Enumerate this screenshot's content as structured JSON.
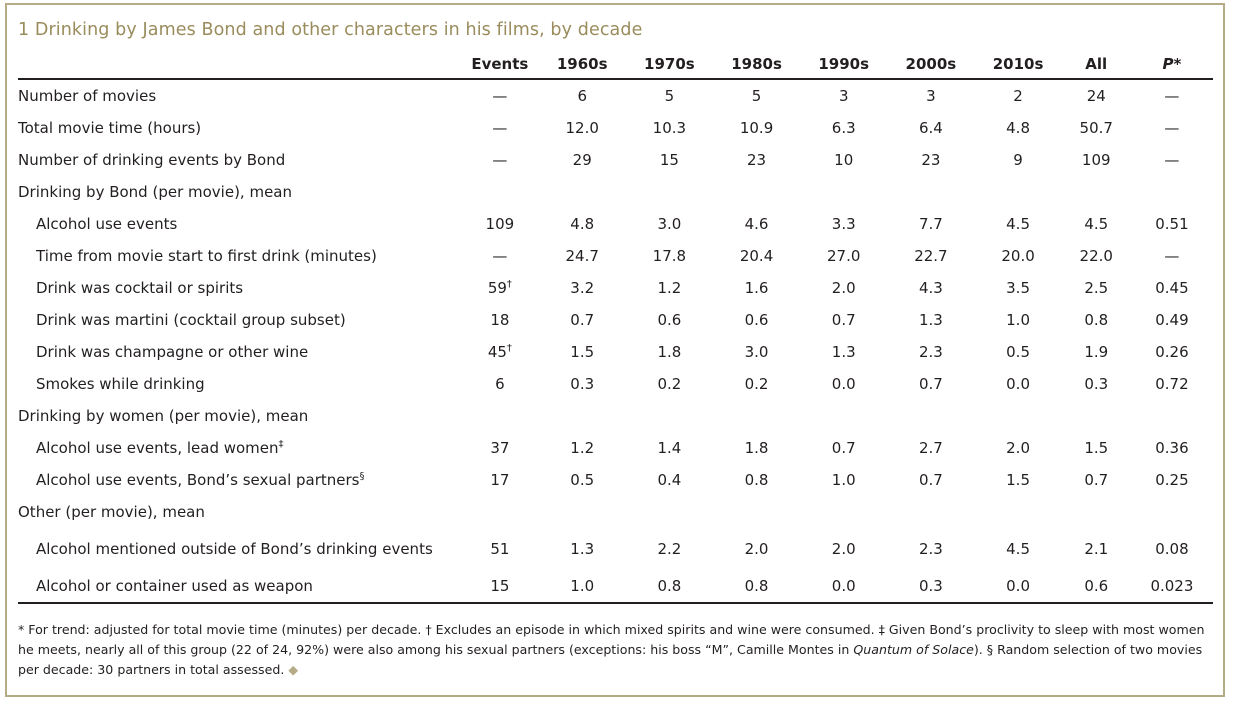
{
  "title": "1 Drinking by James Bond and other characters in his films, by decade",
  "headers": [
    "",
    "Events",
    "1960s",
    "1970s",
    "1980s",
    "1990s",
    "2000s",
    "2010s",
    "All",
    "P*"
  ],
  "rows": [
    {
      "label": "Number of movies",
      "cells": [
        "—",
        "6",
        "5",
        "5",
        "3",
        "3",
        "2",
        "24",
        "—"
      ]
    },
    {
      "label": "Total movie time (hours)",
      "cells": [
        "—",
        "12.0",
        "10.3",
        "10.9",
        "6.3",
        "6.4",
        "4.8",
        "50.7",
        "—"
      ]
    },
    {
      "label": "Number of drinking events by Bond",
      "cells": [
        "—",
        "29",
        "15",
        "23",
        "10",
        "23",
        "9",
        "109",
        "—"
      ]
    },
    {
      "label": "Drinking by Bond (per movie), mean"
    },
    {
      "label": "Alcohol use events",
      "cells": [
        "109",
        "4.8",
        "3.0",
        "4.6",
        "3.3",
        "7.7",
        "4.5",
        "4.5",
        "0.51"
      ]
    },
    {
      "label": "Time from movie start to first drink (minutes)",
      "cells": [
        "—",
        "24.7",
        "17.8",
        "20.4",
        "27.0",
        "22.7",
        "20.0",
        "22.0",
        "—"
      ]
    },
    {
      "label": "Drink was cocktail or spirits",
      "events": "59",
      "events_sup": "†",
      "cells": [
        "",
        "3.2",
        "1.2",
        "1.6",
        "2.0",
        "4.3",
        "3.5",
        "2.5",
        "0.45"
      ]
    },
    {
      "label": "Drink was martini (cocktail group subset)",
      "cells": [
        "18",
        "0.7",
        "0.6",
        "0.6",
        "0.7",
        "1.3",
        "1.0",
        "0.8",
        "0.49"
      ]
    },
    {
      "label": "Drink was champagne or other wine",
      "events": "45",
      "events_sup": "†",
      "cells": [
        "",
        "1.5",
        "1.8",
        "3.0",
        "1.3",
        "2.3",
        "0.5",
        "1.9",
        "0.26"
      ]
    },
    {
      "label": "Smokes while drinking",
      "cells": [
        "6",
        "0.3",
        "0.2",
        "0.2",
        "0.0",
        "0.7",
        "0.0",
        "0.3",
        "0.72"
      ]
    },
    {
      "label": "Drinking by women (per movie), mean"
    },
    {
      "label": "Alcohol use events, lead women",
      "label_sup": "‡",
      "cells": [
        "37",
        "1.2",
        "1.4",
        "1.8",
        "0.7",
        "2.7",
        "2.0",
        "1.5",
        "0.36"
      ]
    },
    {
      "label": "Alcohol use events, Bond’s sexual partners",
      "label_sup": "§",
      "cells": [
        "17",
        "0.5",
        "0.4",
        "0.8",
        "1.0",
        "0.7",
        "1.5",
        "0.7",
        "0.25"
      ]
    },
    {
      "label": "Other (per movie), mean"
    },
    {
      "label": "Alcohol mentioned outside of Bond’s drinking events",
      "cells": [
        "51",
        "1.3",
        "2.2",
        "2.0",
        "2.0",
        "2.3",
        "4.5",
        "2.1",
        "0.08"
      ]
    },
    {
      "label": "Alcohol or container used as weapon",
      "cells": [
        "15",
        "1.0",
        "0.8",
        "0.8",
        "0.0",
        "0.3",
        "0.0",
        "0.6",
        "0.023"
      ]
    }
  ],
  "footnote": {
    "part1": "* For trend: adjusted for total movie time (minutes) per decade. † Excludes an episode in which mixed spirits and wine were consumed. ‡ Given Bond’s proclivity to sleep with most women he meets, nearly all of this group (22 of 24, 92%) were also among his sexual partners (exceptions: his boss “M”, Camille Montes in ",
    "italic": "Quantum of Solace",
    "part2": "). § Random selection of two movies per decade: 30 partners in total assessed.",
    "end_mark": "◆"
  },
  "colors": {
    "title": "#9a8c5c",
    "border": "#b5ab85",
    "text": "#231f20"
  }
}
